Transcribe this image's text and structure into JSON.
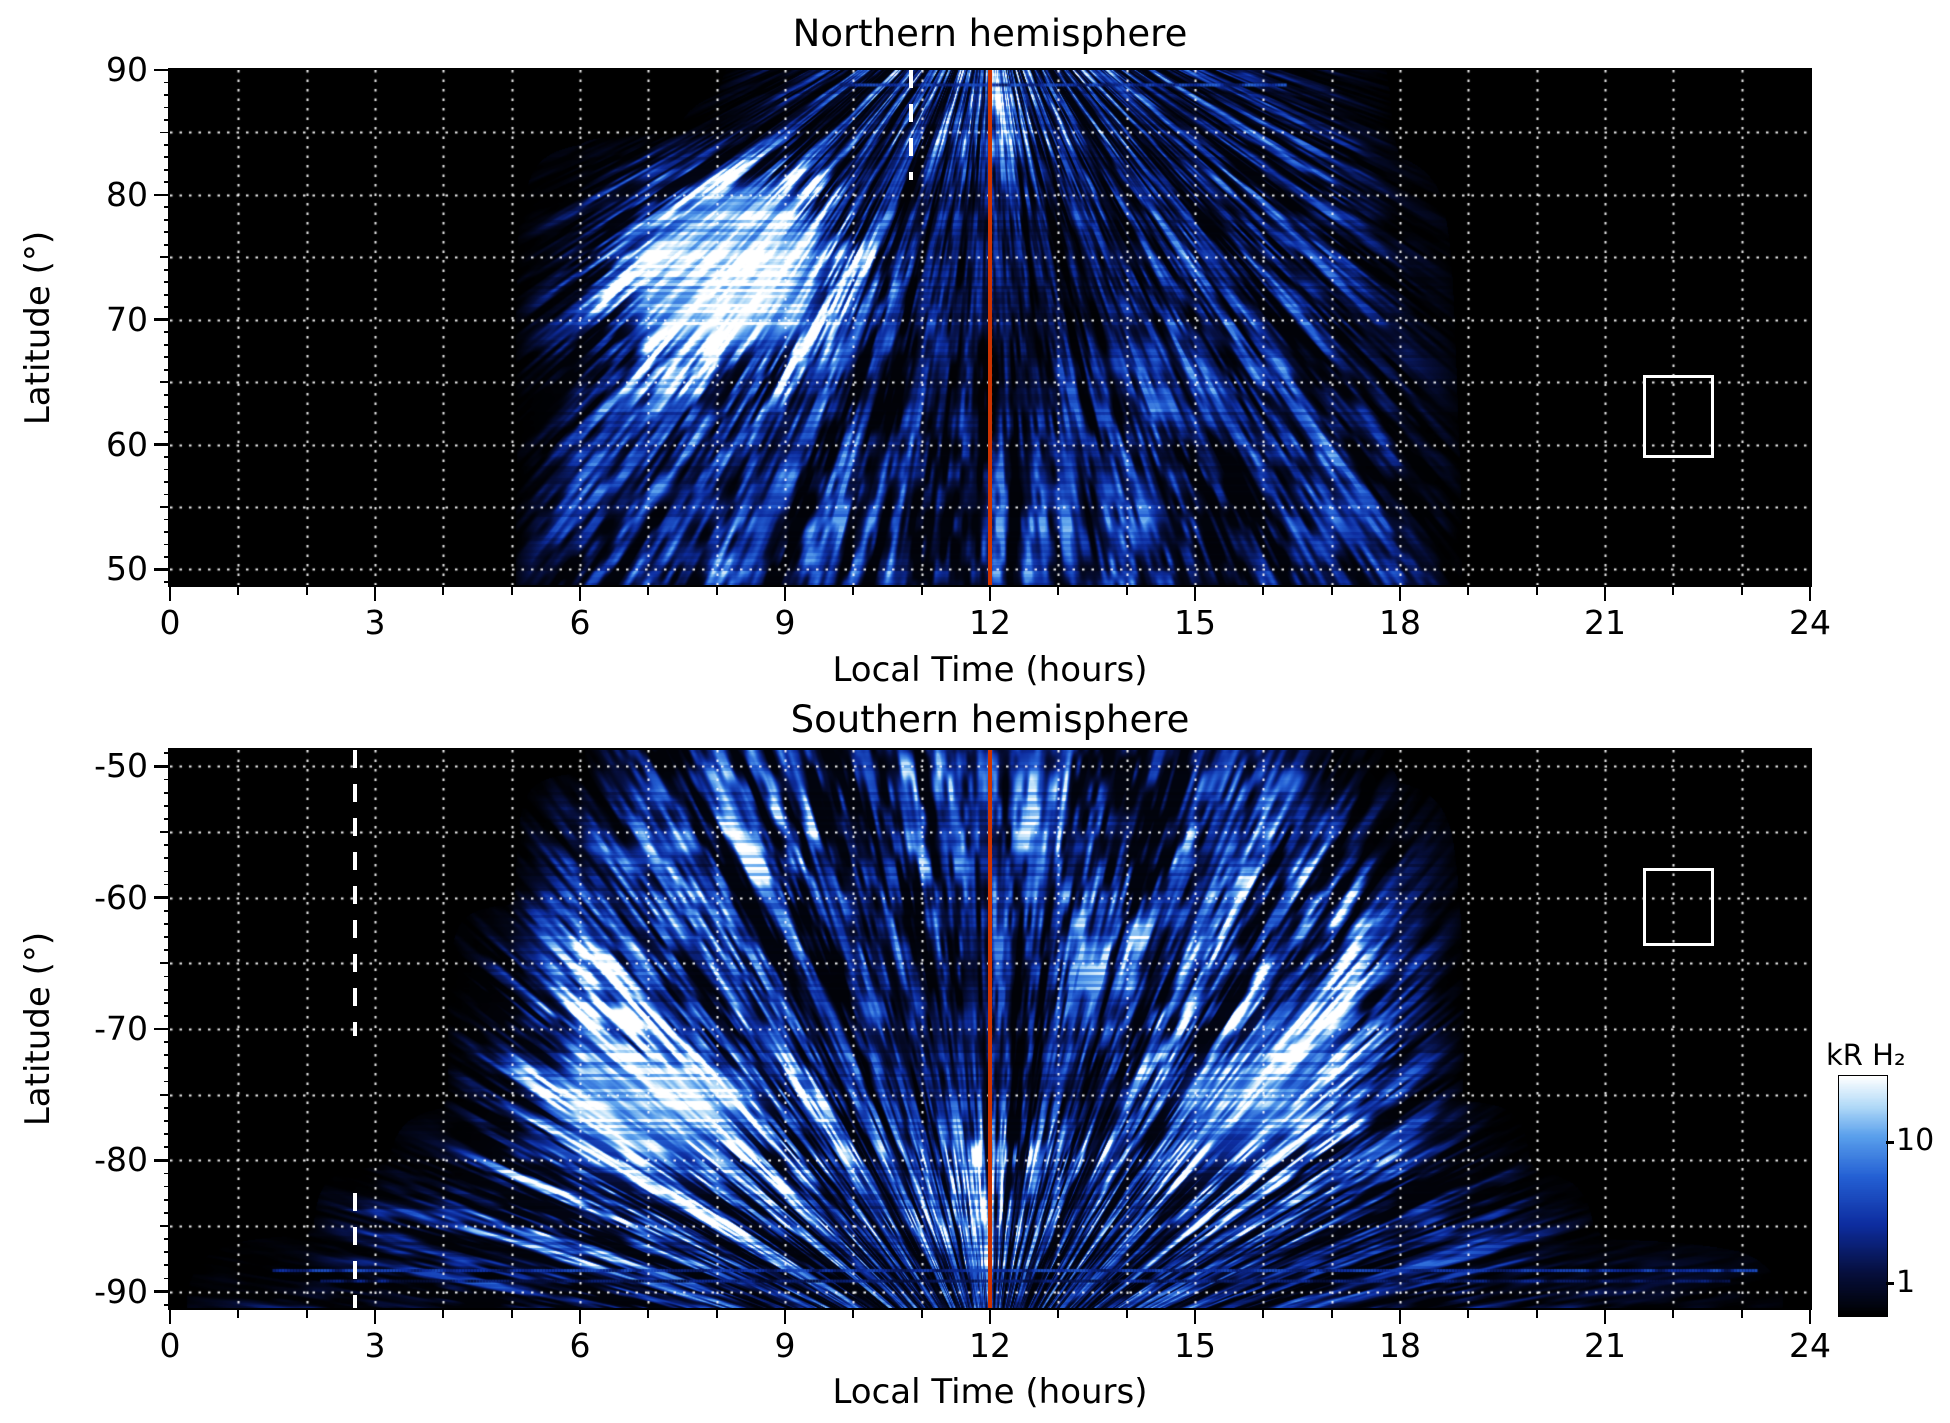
{
  "figure": {
    "background": "#ffffff",
    "colorbar": {
      "label": "kR H₂",
      "scale": "log",
      "range_top": 30,
      "range_bottom": 0.6,
      "ticks": [
        {
          "value": 10,
          "label": "10"
        },
        {
          "value": 1,
          "label": "1"
        }
      ],
      "colormap_stops": [
        {
          "t": 0.0,
          "color": "#000000"
        },
        {
          "t": 0.18,
          "color": "#060f3e"
        },
        {
          "t": 0.38,
          "color": "#0d2da0"
        },
        {
          "t": 0.58,
          "color": "#2460d4"
        },
        {
          "t": 0.75,
          "color": "#5aa0ec"
        },
        {
          "t": 0.88,
          "color": "#b5dcf8"
        },
        {
          "t": 1.0,
          "color": "#ffffff"
        }
      ]
    }
  },
  "chart_data": [
    {
      "type": "heatmap",
      "hemisphere": "north",
      "title": "Northern hemisphere",
      "xlabel": "Local Time (hours)",
      "ylabel": "Latitude (°)",
      "x_range": [
        0,
        24
      ],
      "x_ticks": [
        0,
        3,
        6,
        9,
        12,
        15,
        18,
        21,
        24
      ],
      "y_range": [
        48.75,
        90
      ],
      "y_ticks": [
        50,
        60,
        70,
        80,
        90
      ],
      "grid_lines": {
        "x_step": 1,
        "y_step": 5,
        "style": "dotted",
        "color": "#ffffff"
      },
      "annotations": {
        "noon_line": {
          "x": 12,
          "color": "#cc3300",
          "width": 4
        },
        "dashed_segments": [
          {
            "x": 10.85,
            "lat_from": 90,
            "lat_to": 81.2
          }
        ],
        "box": {
          "lt_from": 21.55,
          "lt_to": 22.6,
          "lat_from": 58.9,
          "lat_to": 65.6
        }
      },
      "horizontal_streaks": [
        {
          "lat": 88.8,
          "lt_from": 9.8,
          "lt_to": 16.3,
          "intensity": 0.5
        }
      ],
      "intensity_grid": {
        "units": "relative H2 emission brightness 0-1 (log kR scale)",
        "lat_rows": [
          90,
          85,
          80,
          75,
          70,
          65,
          60,
          55,
          50
        ],
        "lt_step": 1,
        "values": [
          [
            0,
            0,
            0,
            0,
            0,
            0,
            0,
            0,
            0,
            0.15,
            0.3,
            0.45,
            0.5,
            0.45,
            0.4,
            0.3,
            0.2,
            0.1,
            0,
            0,
            0,
            0,
            0,
            0,
            0
          ],
          [
            0,
            0,
            0,
            0,
            0,
            0,
            0,
            0,
            0.05,
            0.2,
            0.3,
            0.4,
            0.45,
            0.4,
            0.35,
            0.3,
            0.3,
            0.2,
            0,
            0,
            0,
            0,
            0,
            0,
            0
          ],
          [
            0,
            0,
            0,
            0,
            0,
            0,
            0.1,
            0.5,
            0.85,
            0.8,
            0.35,
            0.2,
            0.2,
            0.25,
            0.3,
            0.3,
            0.3,
            0.25,
            0.05,
            0,
            0,
            0,
            0,
            0,
            0
          ],
          [
            0,
            0,
            0,
            0,
            0,
            0,
            0.25,
            0.9,
            0.97,
            0.95,
            0.6,
            0.15,
            0.18,
            0.15,
            0.22,
            0.35,
            0.3,
            0.25,
            0.08,
            0,
            0,
            0,
            0,
            0,
            0
          ],
          [
            0,
            0,
            0,
            0,
            0,
            0,
            0.3,
            0.85,
            0.95,
            0.9,
            0.45,
            0.25,
            0.18,
            0.12,
            0.18,
            0.3,
            0.3,
            0.25,
            0.1,
            0,
            0,
            0,
            0,
            0,
            0
          ],
          [
            0,
            0,
            0,
            0,
            0,
            0,
            0.3,
            0.45,
            0.5,
            0.45,
            0.3,
            0.18,
            0.15,
            0.22,
            0.25,
            0.3,
            0.3,
            0.25,
            0.12,
            0,
            0,
            0,
            0,
            0,
            0
          ],
          [
            0,
            0,
            0,
            0,
            0,
            0,
            0.25,
            0.3,
            0.3,
            0.3,
            0.3,
            0.28,
            0.25,
            0.25,
            0.3,
            0.3,
            0.3,
            0.3,
            0.15,
            0,
            0,
            0,
            0,
            0,
            0
          ],
          [
            0,
            0,
            0,
            0,
            0,
            0,
            0.3,
            0.3,
            0.32,
            0.3,
            0.3,
            0.3,
            0.3,
            0.3,
            0.3,
            0.3,
            0.3,
            0.3,
            0.2,
            0,
            0,
            0,
            0,
            0,
            0
          ],
          [
            0,
            0,
            0,
            0,
            0,
            0,
            0.3,
            0.35,
            0.35,
            0.3,
            0.3,
            0.35,
            0.3,
            0.3,
            0.35,
            0.3,
            0.3,
            0.35,
            0.2,
            0,
            0,
            0,
            0,
            0,
            0
          ]
        ]
      },
      "features": [
        "bright saturated-white auroral patch centered near 08:30 LT, 72-80 deg latitude",
        "speckled blue emission between ~06:30 and ~18:00 LT at 50-70 deg latitude",
        "no data (black) before ~06:30 and after ~18:00 LT",
        "solid red-orange meridian line at 12 h LT",
        "short white dashed line near 10.9 h LT at the top of the panel",
        "small white outlined box near 22 h LT, 59-66 deg latitude"
      ]
    },
    {
      "type": "heatmap",
      "hemisphere": "south",
      "title": "Southern hemisphere",
      "xlabel": "Local Time (hours)",
      "ylabel": "Latitude (°)",
      "x_range": [
        0,
        24
      ],
      "x_ticks": [
        0,
        3,
        6,
        9,
        12,
        15,
        18,
        21,
        24
      ],
      "y_range": [
        -91.25,
        -48.75
      ],
      "y_ticks": [
        -50,
        -60,
        -70,
        -80,
        -90
      ],
      "grid_lines": {
        "x_step": 1,
        "y_step": 5,
        "style": "dotted",
        "color": "#ffffff"
      },
      "annotations": {
        "noon_line": {
          "x": 12,
          "color": "#cc3300",
          "width": 4
        },
        "dashed_segments": [
          {
            "x": 2.7,
            "lat_from": -48.75,
            "lat_to": -70.5
          },
          {
            "x": 2.7,
            "lat_from": -82.5,
            "lat_to": -91.25
          }
        ],
        "box": {
          "lt_from": 21.55,
          "lt_to": 22.6,
          "lat_from": -63.7,
          "lat_to": -57.7
        }
      },
      "horizontal_streaks": [
        {
          "lat": -88.4,
          "lt_from": 1.5,
          "lt_to": 23.2,
          "intensity": 0.45
        },
        {
          "lat": -89.2,
          "lt_from": 2.2,
          "lt_to": 22.8,
          "intensity": 0.3
        }
      ],
      "intensity_grid": {
        "units": "relative H2 emission brightness 0-1 (log kR scale)",
        "lat_rows": [
          -50,
          -55,
          -60,
          -65,
          -70,
          -75,
          -80,
          -85,
          -90
        ],
        "lt_step": 1,
        "values": [
          [
            0,
            0,
            0,
            0,
            0,
            0,
            0,
            0.25,
            0.4,
            0.4,
            0.4,
            0.4,
            0.35,
            0.4,
            0.4,
            0.4,
            0.3,
            0.15,
            0,
            0,
            0,
            0,
            0,
            0,
            0
          ],
          [
            0,
            0,
            0,
            0,
            0,
            0,
            0.2,
            0.4,
            0.45,
            0.4,
            0.4,
            0.38,
            0.35,
            0.4,
            0.4,
            0.4,
            0.4,
            0.3,
            0.08,
            0,
            0,
            0,
            0,
            0,
            0
          ],
          [
            0,
            0,
            0,
            0,
            0,
            0,
            0.38,
            0.45,
            0.4,
            0.4,
            0.35,
            0.35,
            0.3,
            0.38,
            0.4,
            0.4,
            0.45,
            0.5,
            0.15,
            0,
            0,
            0,
            0,
            0,
            0
          ],
          [
            0,
            0,
            0,
            0,
            0,
            0.2,
            0.5,
            0.45,
            0.4,
            0.35,
            0.3,
            0.3,
            0.25,
            0.3,
            0.4,
            0.4,
            0.5,
            0.6,
            0.25,
            0,
            0,
            0,
            0,
            0,
            0
          ],
          [
            0,
            0,
            0,
            0,
            0,
            0.3,
            0.75,
            0.55,
            0.42,
            0.3,
            0.25,
            0.2,
            0.2,
            0.25,
            0.35,
            0.45,
            0.7,
            0.8,
            0.35,
            0,
            0,
            0,
            0,
            0,
            0
          ],
          [
            0,
            0,
            0,
            0,
            0,
            0.3,
            0.9,
            0.97,
            0.9,
            0.6,
            0.3,
            0.2,
            0.25,
            0.2,
            0.3,
            0.8,
            0.9,
            0.7,
            0.25,
            0,
            0,
            0,
            0,
            0,
            0
          ],
          [
            0,
            0,
            0,
            0,
            0.1,
            0.4,
            0.7,
            0.75,
            0.7,
            0.5,
            0.45,
            0.4,
            0.6,
            0.55,
            0.5,
            0.7,
            0.7,
            0.5,
            0.35,
            0.2,
            0,
            0,
            0,
            0,
            0
          ],
          [
            0,
            0,
            0,
            0.2,
            0.3,
            0.4,
            0.5,
            0.5,
            0.5,
            0.45,
            0.4,
            0.45,
            0.5,
            0.45,
            0.45,
            0.5,
            0.45,
            0.4,
            0.3,
            0.25,
            0.12,
            0,
            0,
            0,
            0
          ],
          [
            0,
            0.08,
            0.15,
            0.2,
            0.2,
            0.25,
            0.3,
            0.3,
            0.3,
            0.3,
            0.3,
            0.3,
            0.3,
            0.3,
            0.3,
            0.3,
            0.3,
            0.25,
            0.2,
            0.2,
            0.15,
            0.1,
            0.08,
            0.05,
            0
          ]
        ]
      },
      "features": [
        "bright saturated-white auroral patch centered near 07:30 LT, -72 to -78 deg latitude",
        "bright curved arcs bounding the data coverage near ~06 h and ~17 h LT",
        "dense speckled blue emission between ~06 and ~18 h LT at -50 to -70 deg latitude",
        "fan of emission bands converging toward the pole below -80 deg latitude",
        "thin horizontal streaks near -88/-89 deg spanning ~02-23 h LT",
        "solid red-orange meridian line at 12 h LT",
        "white dashed line near 2.7 h LT, broken between -70 and -82 deg",
        "small white outlined box near 22 h LT, -58 to -64 deg latitude"
      ]
    }
  ]
}
